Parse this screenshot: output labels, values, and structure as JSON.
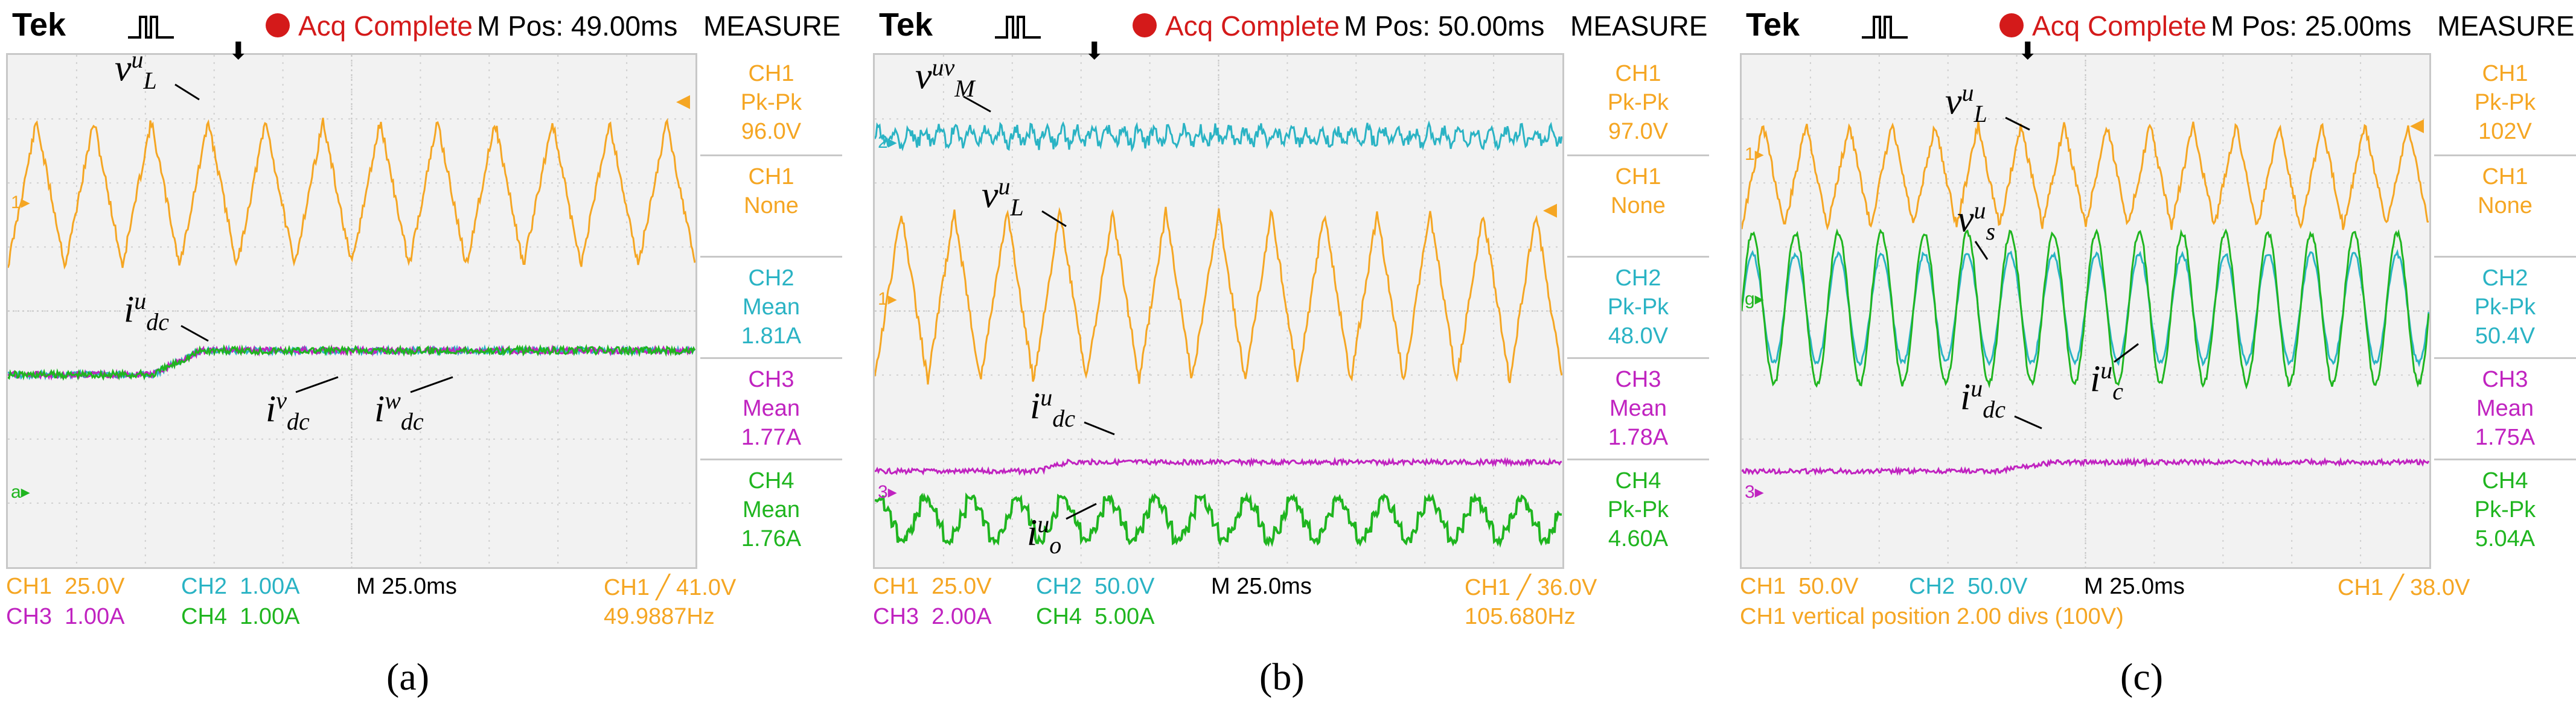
{
  "colors": {
    "ch1": "#f5a623",
    "ch2": "#2ab3c4",
    "ch3": "#c023c0",
    "ch4": "#1fb51f",
    "acq": "#d41a1a"
  },
  "panels": [
    {
      "caption": "(a)",
      "header": {
        "brand": "Tek",
        "status": "Acq Complete",
        "mpos": "M Pos: 49.00ms",
        "menu": "MEASURE"
      },
      "measures": [
        {
          "ch": "CH1",
          "type": "Pk-Pk",
          "value": "96.0V"
        },
        {
          "ch": "CH1",
          "type": "None",
          "value": ""
        },
        {
          "ch": "CH2",
          "type": "Mean",
          "value": "1.81A"
        },
        {
          "ch": "CH3",
          "type": "Mean",
          "value": "1.77A"
        },
        {
          "ch": "CH4",
          "type": "Mean",
          "value": "1.76A"
        }
      ],
      "bottom": {
        "ch1": "CH1  25.0V",
        "ch2": "CH2  1.00A",
        "time": "M 25.0ms",
        "trig": "CH1 ╱ 41.0V",
        "ch3": "CH3  1.00A",
        "ch4": "CH4  1.00A",
        "freq": "49.9887Hz"
      },
      "labels": {
        "l1": "v",
        "l1sup": "u",
        "l1sub": "L",
        "l2": "i",
        "l2sup": "u",
        "l2sub": "dc",
        "l3": "i",
        "l3sup": "v",
        "l3sub": "dc",
        "l4": "i",
        "l4sup": "w",
        "l4sub": "dc"
      },
      "markers": {
        "m1": "1▸",
        "m2": "a▸"
      }
    },
    {
      "caption": "(b)",
      "header": {
        "brand": "Tek",
        "status": "Acq Complete",
        "mpos": "M Pos: 50.00ms",
        "menu": "MEASURE"
      },
      "measures": [
        {
          "ch": "CH1",
          "type": "Pk-Pk",
          "value": "97.0V"
        },
        {
          "ch": "CH1",
          "type": "None",
          "value": ""
        },
        {
          "ch": "CH2",
          "type": "Pk-Pk",
          "value": "48.0V"
        },
        {
          "ch": "CH3",
          "type": "Mean",
          "value": "1.78A"
        },
        {
          "ch": "CH4",
          "type": "Pk-Pk",
          "value": "4.60A"
        }
      ],
      "bottom": {
        "ch1": "CH1  25.0V",
        "ch2": "CH2  50.0V",
        "time": "M 25.0ms",
        "trig": "CH1 ╱ 36.0V",
        "ch3": "CH3  2.00A",
        "ch4": "CH4  5.00A",
        "freq": "105.680Hz"
      },
      "labels": {
        "l1": "v",
        "l1sup": "uv",
        "l1sub": "M",
        "l2": "v",
        "l2sup": "u",
        "l2sub": "L",
        "l3": "i",
        "l3sup": "u",
        "l3sub": "dc",
        "l4": "i",
        "l4sup": "u",
        "l4sub": "o"
      },
      "markers": {
        "m1": "2▸",
        "m2": "1▸",
        "m3": "3▸"
      }
    },
    {
      "caption": "(c)",
      "header": {
        "brand": "Tek",
        "status": "Acq Complete",
        "mpos": "M Pos: 25.00ms",
        "menu": "MEASURE"
      },
      "measures": [
        {
          "ch": "CH1",
          "type": "Pk-Pk",
          "value": "102V"
        },
        {
          "ch": "CH1",
          "type": "None",
          "value": ""
        },
        {
          "ch": "CH2",
          "type": "Pk-Pk",
          "value": "50.4V"
        },
        {
          "ch": "CH3",
          "type": "Mean",
          "value": "1.75A"
        },
        {
          "ch": "CH4",
          "type": "Pk-Pk",
          "value": "5.04A"
        }
      ],
      "bottom": {
        "ch1": "CH1  50.0V",
        "ch2": "CH2  50.0V",
        "time": "M 25.0ms",
        "trig": "CH1 ╱ 38.0V",
        "line2": "CH1 vertical position 2.00 divs (100V)"
      },
      "labels": {
        "l1": "v",
        "l1sup": "u",
        "l1sub": "L",
        "l2": "v",
        "l2sup": "u",
        "l2sub": "s",
        "l3": "i",
        "l3sup": "u",
        "l3sub": "c",
        "l4": "i",
        "l4sup": "u",
        "l4sub": "dc"
      },
      "markers": {
        "m1": "1▸",
        "m2": "g▸",
        "m3": "3▸"
      }
    }
  ]
}
